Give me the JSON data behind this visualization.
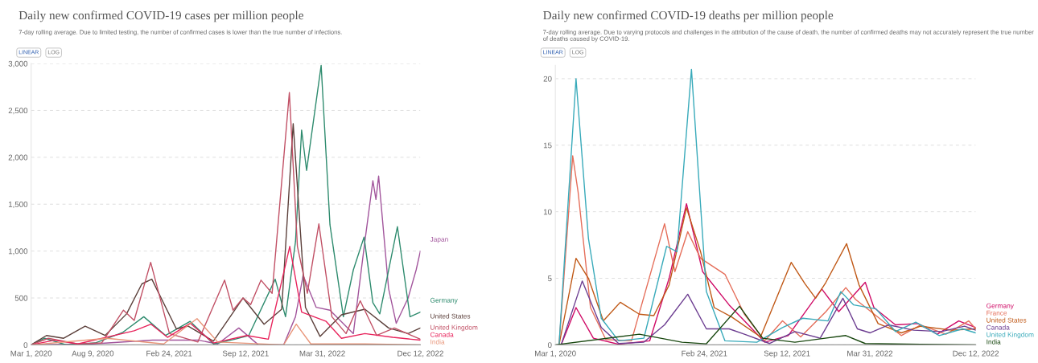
{
  "chart_data": [
    {
      "type": "line",
      "title": "Daily new confirmed COVID-19 cases per million people",
      "subtitle": "7-day rolling average. Due to limited testing, the number of confirmed cases is lower than the true number of infections.",
      "annotations": [
        "LINEAR",
        "LOG"
      ],
      "grid": "y",
      "xlim": [
        "2020-03-01",
        "2022-12-12"
      ],
      "xticks": [
        {
          "value": "2020-03-01",
          "label": "Mar 1, 2020"
        },
        {
          "value": "2020-08-09",
          "label": "Aug 9, 2020"
        },
        {
          "value": "2021-02-24",
          "label": "Feb 24, 2021"
        },
        {
          "value": "2021-09-12",
          "label": "Sep 12, 2021"
        },
        {
          "value": "2022-03-31",
          "label": "Mar 31, 2022"
        },
        {
          "value": "2022-12-12",
          "label": "Dec 12, 2022"
        }
      ],
      "ylim": [
        0,
        3000
      ],
      "yticks": [
        0,
        500,
        {
          "value": 1000,
          "label": "1,000"
        },
        {
          "value": 1500,
          "label": "1,500"
        },
        {
          "value": 2000,
          "label": "2,000"
        },
        {
          "value": 2500,
          "label": "2,500"
        },
        {
          "value": 3000,
          "label": "3,000"
        }
      ],
      "series": [
        {
          "name": "Japan",
          "color": "#a2559c",
          "x": [
            "2020-03-01",
            "2020-08-07",
            "2021-01-12",
            "2021-05-12",
            "2021-07-01",
            "2021-08-25",
            "2021-10-15",
            "2021-12-20",
            "2022-01-20",
            "2022-02-09",
            "2022-03-15",
            "2022-04-20",
            "2022-06-20",
            "2022-07-20",
            "2022-08-10",
            "2022-08-18",
            "2022-08-25",
            "2022-09-20",
            "2022-10-10",
            "2022-11-10",
            "2022-12-01",
            "2022-12-12"
          ],
          "values": [
            0,
            10,
            50,
            50,
            10,
            180,
            0,
            0,
            300,
            740,
            400,
            370,
            120,
            1100,
            1750,
            1550,
            1800,
            600,
            230,
            500,
            800,
            1000
          ]
        },
        {
          "name": "Germany",
          "color": "#2e8b6e",
          "x": [
            "2020-03-01",
            "2020-04-05",
            "2020-06-01",
            "2020-08-15",
            "2020-10-25",
            "2020-12-20",
            "2021-02-15",
            "2021-04-20",
            "2021-06-20",
            "2021-08-15",
            "2021-09-20",
            "2021-11-28",
            "2021-12-25",
            "2022-01-20",
            "2022-02-05",
            "2022-02-18",
            "2022-03-28",
            "2022-04-20",
            "2022-05-25",
            "2022-06-20",
            "2022-07-18",
            "2022-08-10",
            "2022-08-28",
            "2022-10-13",
            "2022-11-15",
            "2022-12-12"
          ],
          "values": [
            0,
            70,
            0,
            20,
            130,
            300,
            100,
            250,
            10,
            60,
            100,
            700,
            300,
            1100,
            2290,
            1860,
            2980,
            1280,
            300,
            800,
            1150,
            450,
            330,
            1260,
            300,
            350
          ]
        },
        {
          "name": "United States",
          "color": "#5b3f3a",
          "x": [
            "2020-03-01",
            "2020-04-10",
            "2020-05-25",
            "2020-07-20",
            "2020-09-10",
            "2020-11-05",
            "2020-12-15",
            "2021-01-10",
            "2021-03-15",
            "2021-04-15",
            "2021-06-20",
            "2021-09-05",
            "2021-10-30",
            "2021-12-15",
            "2022-01-14",
            "2022-02-15",
            "2022-03-25",
            "2022-05-20",
            "2022-07-20",
            "2022-09-20",
            "2022-11-10",
            "2022-12-12"
          ],
          "values": [
            0,
            100,
            70,
            200,
            100,
            330,
            650,
            700,
            170,
            200,
            40,
            500,
            220,
            380,
            2360,
            400,
            90,
            320,
            380,
            180,
            120,
            180
          ]
        },
        {
          "name": "United Kingdom",
          "color": "#c15065",
          "x": [
            "2020-03-01",
            "2020-04-15",
            "2020-07-01",
            "2020-09-01",
            "2020-10-28",
            "2020-11-25",
            "2021-01-07",
            "2021-02-25",
            "2021-05-10",
            "2021-07-19",
            "2021-08-10",
            "2021-09-05",
            "2021-09-25",
            "2021-10-22",
            "2021-11-20",
            "2022-01-04",
            "2022-01-25",
            "2022-02-20",
            "2022-03-22",
            "2022-04-25",
            "2022-06-01",
            "2022-07-08",
            "2022-08-20",
            "2022-10-05",
            "2022-12-12"
          ],
          "values": [
            0,
            70,
            10,
            20,
            370,
            260,
            880,
            120,
            30,
            690,
            370,
            500,
            430,
            690,
            550,
            2690,
            1050,
            550,
            1290,
            300,
            120,
            470,
            100,
            180,
            60
          ]
        },
        {
          "name": "Canada",
          "color": "#e8245c",
          "x": [
            "2020-03-01",
            "2020-05-01",
            "2020-07-01",
            "2020-11-25",
            "2021-01-08",
            "2021-02-20",
            "2021-04-20",
            "2021-06-20",
            "2021-09-15",
            "2021-11-10",
            "2022-01-05",
            "2022-02-05",
            "2022-04-10",
            "2022-05-20",
            "2022-07-20",
            "2022-10-01",
            "2022-12-12"
          ],
          "values": [
            0,
            50,
            10,
            150,
            220,
            80,
            230,
            20,
            100,
            60,
            1050,
            350,
            250,
            70,
            120,
            80,
            50
          ]
        },
        {
          "name": "India",
          "color": "#e9967a",
          "x": [
            "2020-03-01",
            "2020-09-15",
            "2021-02-10",
            "2021-05-08",
            "2021-07-01",
            "2021-12-20",
            "2022-01-22",
            "2022-03-01",
            "2022-07-20",
            "2022-12-12"
          ],
          "values": [
            0,
            70,
            10,
            280,
            30,
            0,
            220,
            10,
            10,
            0
          ]
        }
      ]
    },
    {
      "type": "line",
      "title": "Daily new confirmed COVID-19 deaths per million people",
      "subtitle": "7-day rolling average. Due to varying protocols and challenges in the attribution of the cause of death, the number of confirmed deaths may not accurately represent the true number of deaths caused by COVID-19.",
      "annotations": [
        "LINEAR",
        "LOG"
      ],
      "grid": "y",
      "xlim": [
        "2020-03-01",
        "2022-12-12"
      ],
      "xticks": [
        {
          "value": "2020-03-01",
          "label": "Mar 1, 2020"
        },
        {
          "value": "2021-02-24",
          "label": "Feb 24, 2021"
        },
        {
          "value": "2021-09-12",
          "label": "Sep 12, 2021"
        },
        {
          "value": "2022-03-31",
          "label": "Mar 31, 2022"
        },
        {
          "value": "2022-12-12",
          "label": "Dec 12, 2022"
        }
      ],
      "ylim": [
        0,
        21
      ],
      "yticks": [
        0,
        5,
        10,
        15,
        20
      ],
      "series": [
        {
          "name": "Germany",
          "color": "#cf0a66",
          "x": [
            "2020-03-15",
            "2020-04-20",
            "2020-06-01",
            "2020-08-01",
            "2020-10-15",
            "2020-12-01",
            "2021-01-12",
            "2021-02-20",
            "2021-04-25",
            "2021-06-01",
            "2021-07-20",
            "2021-09-15",
            "2021-12-05",
            "2022-01-15",
            "2022-03-20",
            "2022-04-10",
            "2022-06-01",
            "2022-07-25",
            "2022-09-10",
            "2022-11-01",
            "2022-12-12"
          ],
          "values": [
            0,
            2.8,
            0.5,
            0.05,
            0.3,
            5,
            10.6,
            5.5,
            3,
            1.8,
            0.2,
            0.7,
            4.2,
            2.5,
            4.7,
            2.8,
            1.5,
            1.6,
            0.8,
            1.8,
            1.3
          ]
        },
        {
          "name": "France",
          "color": "#e56e5a",
          "x": [
            "2020-03-10",
            "2020-04-12",
            "2020-04-25",
            "2020-05-25",
            "2020-07-01",
            "2020-09-01",
            "2020-11-20",
            "2020-12-15",
            "2021-01-15",
            "2021-02-15",
            "2021-04-15",
            "2021-06-01",
            "2021-07-20",
            "2021-09-01",
            "2021-10-15",
            "2021-12-15",
            "2022-02-01",
            "2022-02-25",
            "2022-04-15",
            "2022-06-15",
            "2022-08-01",
            "2022-10-01",
            "2022-11-25",
            "2022-12-12"
          ],
          "values": [
            0,
            14.2,
            11.5,
            2.8,
            0.4,
            0.3,
            9.1,
            5.5,
            8.5,
            6.5,
            5.3,
            2.3,
            0.3,
            1.8,
            0.6,
            2.5,
            4.3,
            3.4,
            2.2,
            0.7,
            1.5,
            0.8,
            1.8,
            1.2
          ]
        },
        {
          "name": "United States",
          "color": "#c05917",
          "x": [
            "2020-03-10",
            "2020-04-20",
            "2020-05-20",
            "2020-06-25",
            "2020-08-05",
            "2020-09-20",
            "2020-10-25",
            "2020-12-01",
            "2021-01-12",
            "2021-02-15",
            "2021-03-20",
            "2021-05-01",
            "2021-07-10",
            "2021-09-22",
            "2021-10-25",
            "2021-11-20",
            "2021-12-15",
            "2022-02-03",
            "2022-03-05",
            "2022-04-20",
            "2022-06-15",
            "2022-08-01",
            "2022-10-15",
            "2022-12-12"
          ],
          "values": [
            0,
            6.5,
            5,
            1.8,
            3.2,
            2.3,
            2.2,
            4.5,
            10.3,
            7,
            2.8,
            2.1,
            0.6,
            6.2,
            4.6,
            3.5,
            4.7,
            7.6,
            4.5,
            1.6,
            0.9,
            1.4,
            1.1,
            1.2
          ]
        },
        {
          "name": "Canada",
          "color": "#6d3e91",
          "x": [
            "2020-03-15",
            "2020-05-05",
            "2020-06-20",
            "2020-08-01",
            "2020-10-01",
            "2020-11-20",
            "2021-01-15",
            "2021-03-01",
            "2021-04-25",
            "2021-06-01",
            "2021-08-01",
            "2021-10-01",
            "2021-12-01",
            "2022-01-25",
            "2022-03-01",
            "2022-04-01",
            "2022-05-15",
            "2022-07-15",
            "2022-09-20",
            "2022-11-15",
            "2022-12-12"
          ],
          "values": [
            0,
            4.8,
            1.3,
            0.1,
            0.2,
            1.5,
            3.8,
            1.2,
            1.2,
            0.8,
            0.1,
            1,
            0.5,
            3.5,
            1.2,
            0.9,
            1.5,
            1.1,
            1,
            1.4,
            1.1
          ]
        },
        {
          "name": "United Kingdom",
          "color": "#38aaba",
          "x": [
            "2020-03-10",
            "2020-04-20",
            "2020-05-20",
            "2020-06-20",
            "2020-08-01",
            "2020-10-01",
            "2020-11-25",
            "2020-12-20",
            "2021-01-24",
            "2021-03-01",
            "2021-04-15",
            "2021-07-01",
            "2021-09-01",
            "2021-10-20",
            "2021-12-20",
            "2022-01-20",
            "2022-02-20",
            "2022-04-15",
            "2022-06-01",
            "2022-07-20",
            "2022-09-15",
            "2022-11-10",
            "2022-12-12"
          ],
          "values": [
            0,
            20,
            8,
            2,
            0.3,
            0.5,
            7.4,
            7,
            20.7,
            4,
            0.3,
            0.2,
            1.3,
            2,
            1.8,
            4,
            3,
            2.7,
            1,
            1.7,
            0.7,
            1.2,
            0.9
          ]
        },
        {
          "name": "India",
          "color": "#18470f",
          "x": [
            "2020-03-01",
            "2020-09-20",
            "2021-01-01",
            "2021-03-01",
            "2021-05-20",
            "2021-07-15",
            "2021-10-01",
            "2022-02-01",
            "2022-03-20",
            "2022-08-01",
            "2022-12-12"
          ],
          "values": [
            0,
            0.8,
            0.2,
            0.08,
            2.9,
            0.5,
            0.2,
            0.7,
            0.1,
            0.04,
            0
          ]
        }
      ]
    }
  ]
}
